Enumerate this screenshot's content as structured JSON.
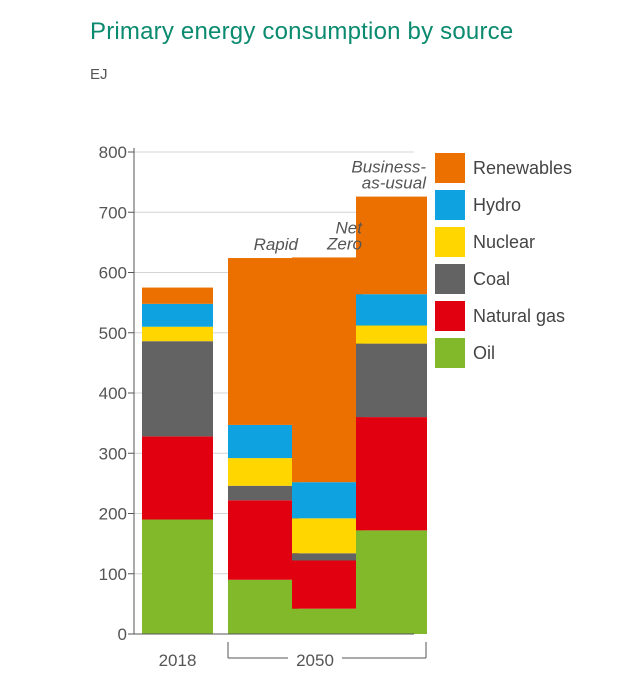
{
  "chart_data": {
    "type": "bar",
    "stacked": true,
    "title": "Primary energy consumption by source",
    "unit_label": "EJ",
    "categories": [
      "2018",
      "Rapid",
      "Net Zero",
      "Business-as-usual"
    ],
    "group_label": "2050",
    "y_ticks": [
      "0",
      "100",
      "200",
      "300",
      "400",
      "500",
      "600",
      "700",
      "800"
    ],
    "ylim": [
      0,
      800
    ],
    "grid": true,
    "legend_placement": "right",
    "series": [
      {
        "name": "Oil",
        "color": "#82b92b",
        "values": [
          190,
          90,
          42,
          172
        ]
      },
      {
        "name": "Natural gas",
        "color": "#e1000f",
        "values": [
          138,
          132,
          80,
          188
        ]
      },
      {
        "name": "Coal",
        "color": "#636363",
        "values": [
          158,
          24,
          12,
          122
        ]
      },
      {
        "name": "Nuclear",
        "color": "#ffd600",
        "values": [
          24,
          46,
          58,
          30
        ]
      },
      {
        "name": "Hydro",
        "color": "#0ea2e0",
        "values": [
          38,
          55,
          60,
          52
        ]
      },
      {
        "name": "Renewables",
        "color": "#eb7000",
        "values": [
          27,
          277,
          373,
          162
        ]
      }
    ]
  }
}
